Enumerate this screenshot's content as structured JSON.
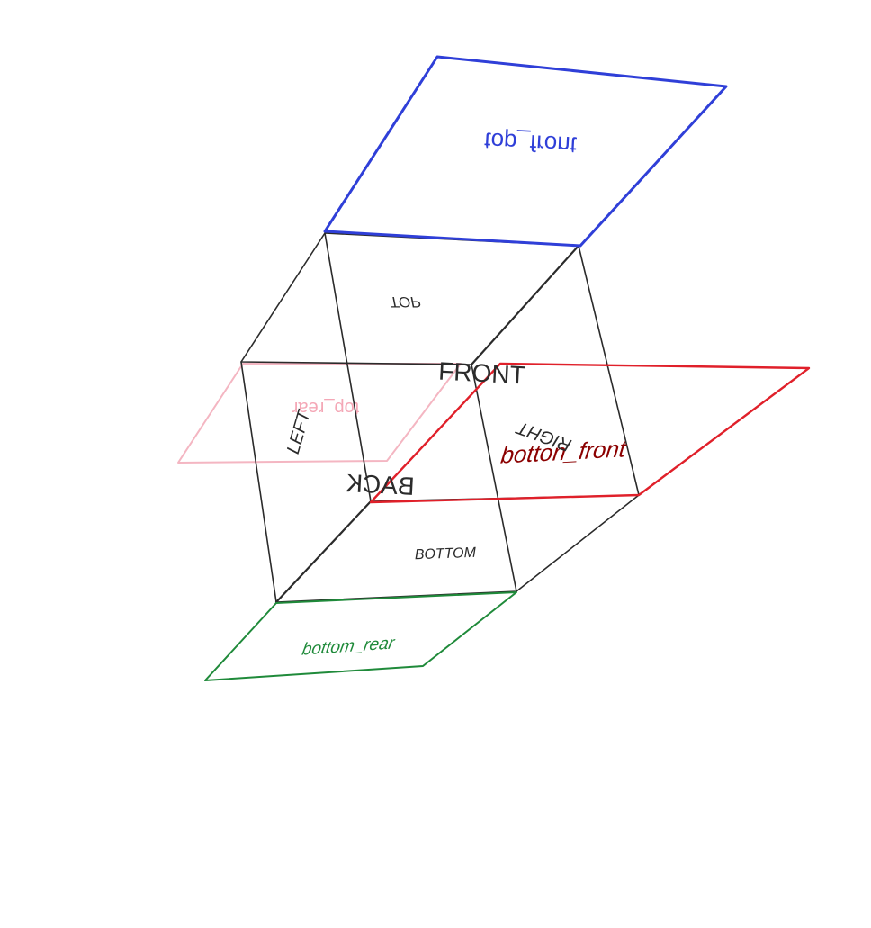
{
  "diagram": {
    "cube_faces": [
      {
        "key": "top",
        "label": "TOP"
      },
      {
        "key": "front",
        "label": "FRONT"
      },
      {
        "key": "left",
        "label": "LEFT"
      },
      {
        "key": "right",
        "label": "RIGHT"
      },
      {
        "key": "back",
        "label": "BACK"
      },
      {
        "key": "bottom",
        "label": "BOTTOM"
      }
    ],
    "planes": [
      {
        "key": "top_front",
        "label": "top_front",
        "color": "#2f3fd8"
      },
      {
        "key": "top_rear",
        "label": "top_rear",
        "color": "#f4b6c2"
      },
      {
        "key": "botton_front",
        "label": "botton_front",
        "color": "#e0202a",
        "label_color": "#8b0000"
      },
      {
        "key": "bottom_rear",
        "label": "bottom_rear",
        "color": "#1f8a3a"
      }
    ],
    "edge_color": "#2b2b2b"
  }
}
